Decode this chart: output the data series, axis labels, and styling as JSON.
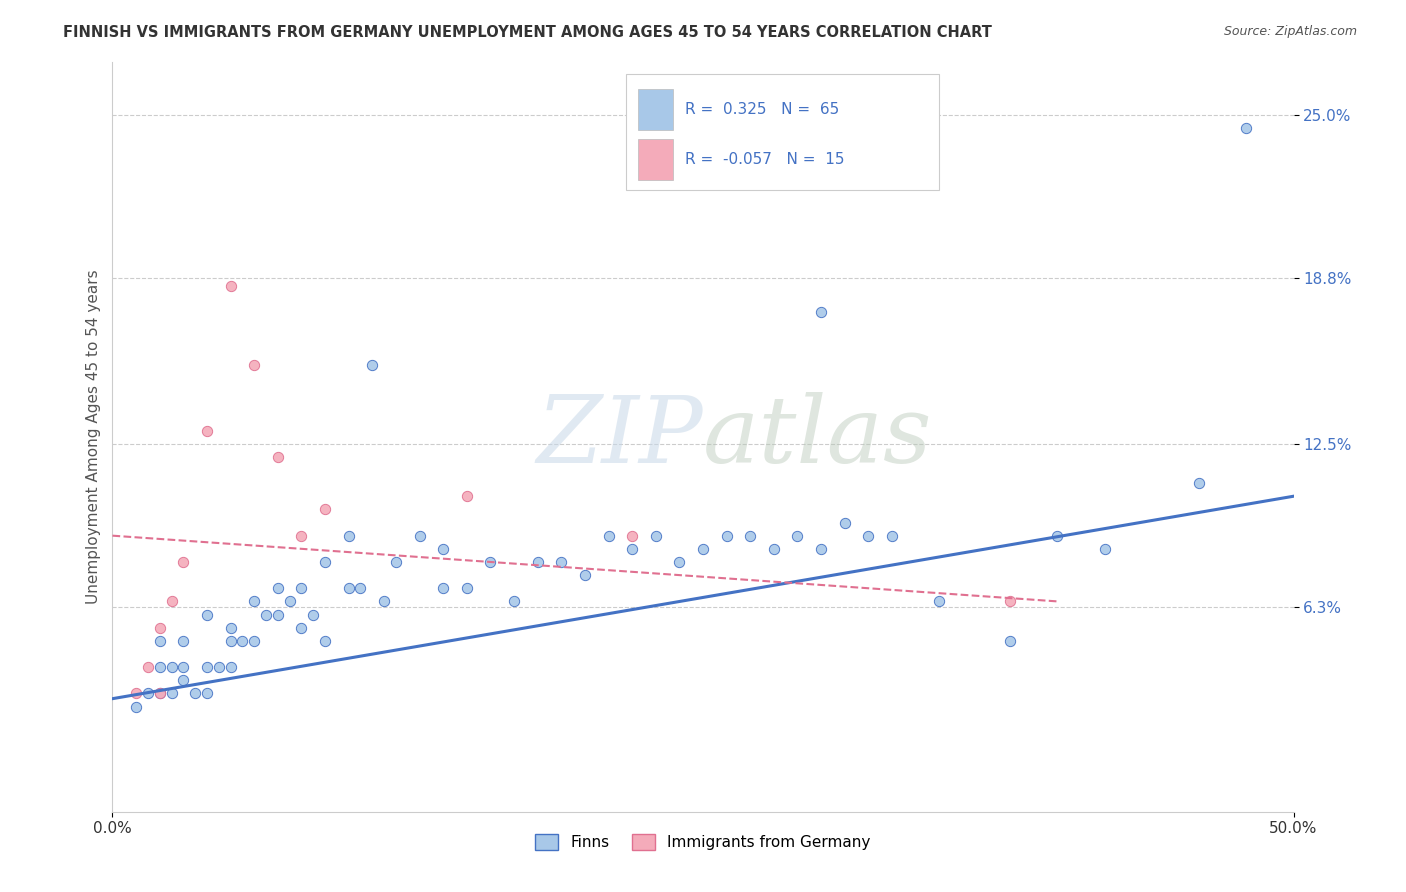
{
  "title": "FINNISH VS IMMIGRANTS FROM GERMANY UNEMPLOYMENT AMONG AGES 45 TO 54 YEARS CORRELATION CHART",
  "source": "Source: ZipAtlas.com",
  "ylabel": "Unemployment Among Ages 45 to 54 years",
  "xlim": [
    0.0,
    0.5
  ],
  "ylim": [
    -0.015,
    0.27
  ],
  "x_tick_labels": [
    "0.0%",
    "50.0%"
  ],
  "x_tick_values": [
    0.0,
    0.5
  ],
  "y_tick_labels": [
    "6.3%",
    "12.5%",
    "18.8%",
    "25.0%"
  ],
  "y_tick_values": [
    0.063,
    0.125,
    0.188,
    0.25
  ],
  "legend1_R": "0.325",
  "legend1_N": "65",
  "legend2_R": "-0.057",
  "legend2_N": "15",
  "color_finns": "#A8C8E8",
  "color_germany": "#F4ABBA",
  "color_line_finns": "#4472C4",
  "color_line_germany": "#E07090",
  "watermark_zip": "ZIP",
  "watermark_atlas": "atlas",
  "legend_bottom": [
    "Finns",
    "Immigrants from Germany"
  ],
  "finns_x": [
    0.01,
    0.015,
    0.02,
    0.02,
    0.02,
    0.025,
    0.025,
    0.03,
    0.03,
    0.03,
    0.035,
    0.04,
    0.04,
    0.04,
    0.045,
    0.05,
    0.05,
    0.05,
    0.055,
    0.06,
    0.06,
    0.065,
    0.07,
    0.07,
    0.075,
    0.08,
    0.08,
    0.085,
    0.09,
    0.09,
    0.1,
    0.1,
    0.105,
    0.11,
    0.115,
    0.12,
    0.13,
    0.14,
    0.14,
    0.15,
    0.16,
    0.17,
    0.18,
    0.19,
    0.2,
    0.21,
    0.22,
    0.23,
    0.24,
    0.25,
    0.26,
    0.27,
    0.28,
    0.29,
    0.3,
    0.3,
    0.31,
    0.32,
    0.33,
    0.35,
    0.38,
    0.4,
    0.42,
    0.46,
    0.48
  ],
  "finns_y": [
    0.025,
    0.03,
    0.03,
    0.04,
    0.05,
    0.03,
    0.04,
    0.035,
    0.04,
    0.05,
    0.03,
    0.03,
    0.04,
    0.06,
    0.04,
    0.04,
    0.05,
    0.055,
    0.05,
    0.05,
    0.065,
    0.06,
    0.06,
    0.07,
    0.065,
    0.055,
    0.07,
    0.06,
    0.05,
    0.08,
    0.07,
    0.09,
    0.07,
    0.155,
    0.065,
    0.08,
    0.09,
    0.07,
    0.085,
    0.07,
    0.08,
    0.065,
    0.08,
    0.08,
    0.075,
    0.09,
    0.085,
    0.09,
    0.08,
    0.085,
    0.09,
    0.09,
    0.085,
    0.09,
    0.085,
    0.175,
    0.095,
    0.09,
    0.09,
    0.065,
    0.05,
    0.09,
    0.085,
    0.11,
    0.245
  ],
  "germany_x": [
    0.01,
    0.015,
    0.02,
    0.02,
    0.025,
    0.03,
    0.04,
    0.05,
    0.06,
    0.07,
    0.08,
    0.09,
    0.15,
    0.22,
    0.38
  ],
  "germany_y": [
    0.03,
    0.04,
    0.03,
    0.055,
    0.065,
    0.08,
    0.13,
    0.185,
    0.155,
    0.12,
    0.09,
    0.1,
    0.105,
    0.09,
    0.065
  ],
  "finns_line_x": [
    0.0,
    0.5
  ],
  "finns_line_y": [
    0.028,
    0.105
  ],
  "germany_line_x": [
    0.0,
    0.4
  ],
  "germany_line_y": [
    0.09,
    0.065
  ],
  "grid_color": "#CCCCCC",
  "background_color": "#FFFFFF",
  "text_color": "#4472C4",
  "title_color": "#333333"
}
